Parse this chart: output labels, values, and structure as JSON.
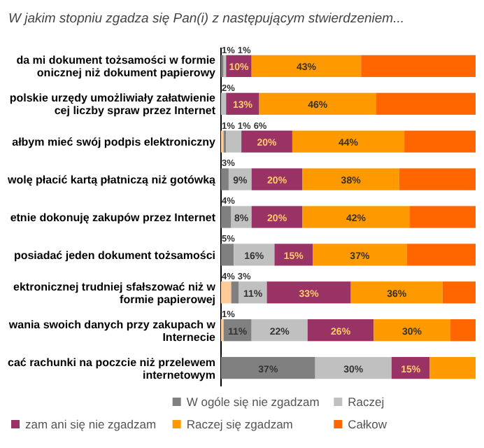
{
  "chart_data": {
    "type": "bar",
    "orientation": "horizontal",
    "stacked": true,
    "legend": "bottom",
    "title": "W jakim stopniu zgadza się Pan(i) z następującym stwierdzeniem...",
    "categories": [
      "da mi  dokument tożsamości w formie onicznej niż  dokument papierowy",
      "polskie urzędy umożliwiały załatwienie cej liczby spraw przez Internet",
      "ałbym mieć swój podpis elektroniczny",
      "wolę płacić kartą płatniczą niż gotówką",
      "etnie dokonuję zakupów przez Internet",
      "posiadać jeden dokument tożsamości",
      "ektronicznej trudniej sfałszować niż w formie papierowej",
      "wania swoich danych przy zakupach w Internecie",
      "cać rachunki na poczcie niż przelewem internetowym"
    ],
    "series": [
      {
        "color": "#ffcc99",
        "values": [
          null,
          null,
          1,
          null,
          null,
          null,
          4,
          1,
          null
        ],
        "value_labels": [
          null,
          null,
          "1%",
          null,
          null,
          null,
          "4%",
          "1%",
          null
        ]
      },
      {
        "name": "W ogóle się nie zgadzam",
        "color": "#808080",
        "values": [
          1,
          null,
          1,
          3,
          4,
          5,
          3,
          11,
          37
        ],
        "value_labels": [
          "1%",
          null,
          "1%",
          "3%",
          "4%",
          "5%",
          "3%",
          "11%",
          "37%"
        ]
      },
      {
        "name": "Raczej",
        "color": "#c0c0c0",
        "values": [
          1,
          2,
          6,
          9,
          8,
          16,
          11,
          22,
          30
        ],
        "value_labels": [
          "1%",
          "2%",
          "6%",
          "9%",
          "8%",
          "16%",
          "11%",
          "22%",
          "30%"
        ]
      },
      {
        "name": "zam ani się nie zgadzam",
        "color": "#993366",
        "values": [
          10,
          13,
          20,
          20,
          20,
          15,
          33,
          26,
          15
        ],
        "value_labels": [
          "10%",
          "13%",
          "20%",
          "20%",
          "20%",
          "15%",
          "33%",
          "26%",
          "15%"
        ]
      },
      {
        "name": "Raczej się zgadzam",
        "color": "#ff9900",
        "values": [
          43,
          46,
          44,
          38,
          42,
          37,
          36,
          30,
          18
        ],
        "value_labels": [
          "43%",
          "46%",
          "44%",
          "38%",
          "42%",
          "37%",
          "36%",
          "30%",
          null
        ]
      },
      {
        "name": "Całkow",
        "color": "#ff6600",
        "values": [
          45,
          39,
          28,
          30,
          26,
          27,
          13,
          10,
          null
        ],
        "value_labels": [
          null,
          null,
          null,
          null,
          null,
          null,
          null,
          null,
          null
        ]
      }
    ]
  }
}
